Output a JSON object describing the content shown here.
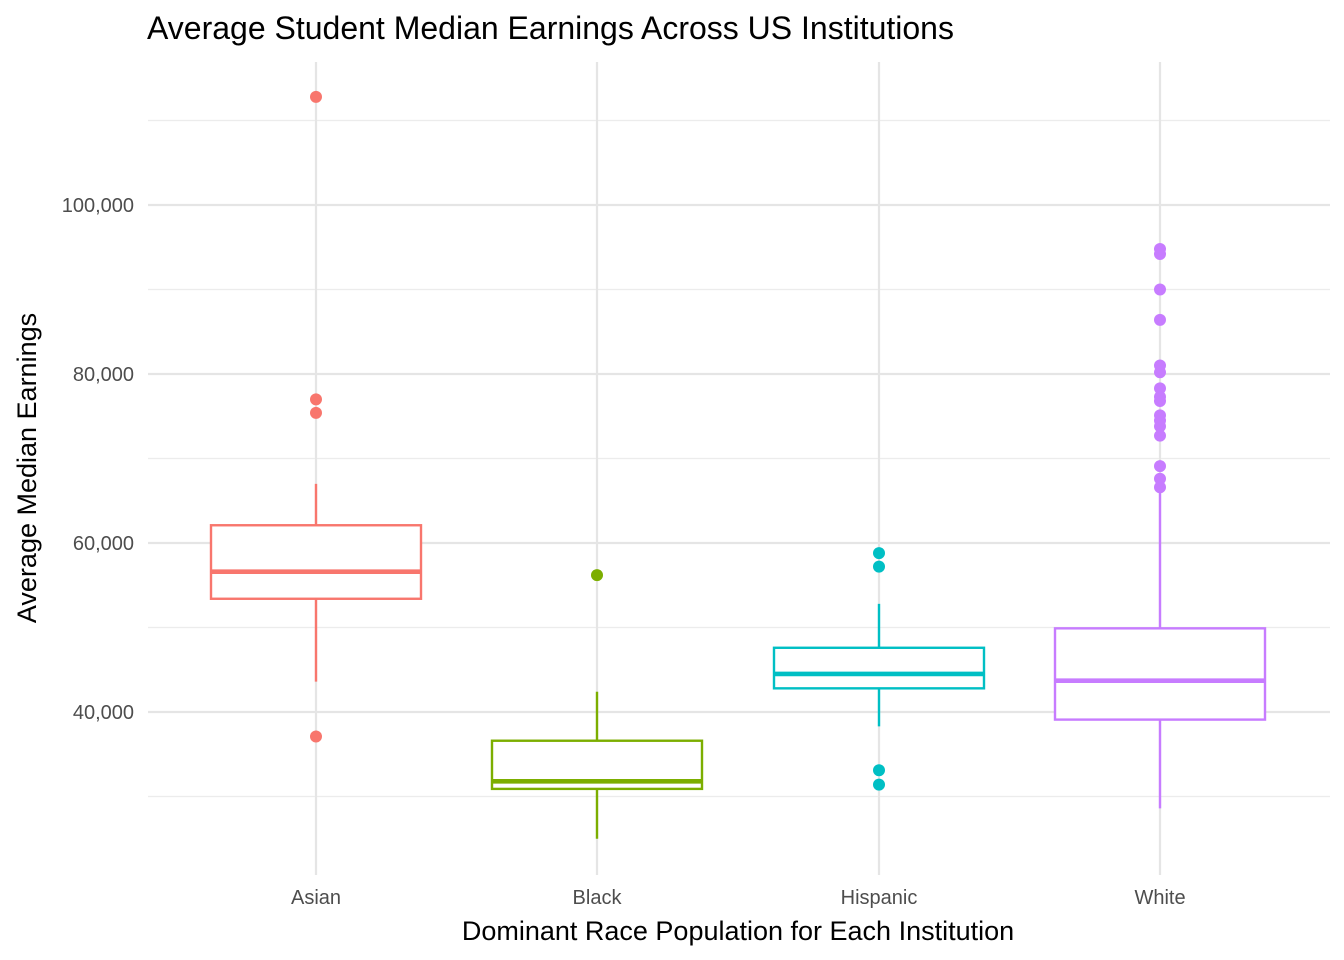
{
  "chart_data": {
    "type": "boxplot",
    "title": "Average Student Median Earnings Across US Institutions",
    "xlabel": "Dominant Race Population for Each Institution",
    "ylabel": "Average Median Earnings",
    "ylim": [
      22000,
      118000
    ],
    "yticks": [
      40000,
      60000,
      80000,
      100000
    ],
    "ytick_labels": [
      "40,000",
      "60,000",
      "80,000",
      "100,000"
    ],
    "grid": true,
    "legend": "none",
    "categories": [
      "Asian",
      "Black",
      "Hispanic",
      "White"
    ],
    "boxes": [
      {
        "category": "Asian",
        "color": "#F8766D",
        "whisker_low": 43600,
        "q1": 53400,
        "median": 56600,
        "q3": 62100,
        "whisker_high": 67000,
        "outliers": [
          112800,
          77000,
          75400,
          37100
        ]
      },
      {
        "category": "Black",
        "color": "#7CAE00",
        "whisker_low": 25000,
        "q1": 30900,
        "median": 31800,
        "q3": 36600,
        "whisker_high": 42400,
        "outliers": [
          56200
        ]
      },
      {
        "category": "Hispanic",
        "color": "#00BFC4",
        "whisker_low": 38300,
        "q1": 42800,
        "median": 44500,
        "q3": 47600,
        "whisker_high": 52800,
        "outliers": [
          58800,
          57200,
          33100,
          31400
        ]
      },
      {
        "category": "White",
        "color": "#C77CFF",
        "whisker_low": 28600,
        "q1": 39100,
        "median": 43700,
        "q3": 49900,
        "whisker_high": 66000,
        "outliers": [
          94800,
          94200,
          90000,
          86400,
          81000,
          80200,
          78300,
          77300,
          76800,
          75100,
          74500,
          73800,
          72700,
          69100,
          67600,
          66600
        ]
      }
    ]
  }
}
